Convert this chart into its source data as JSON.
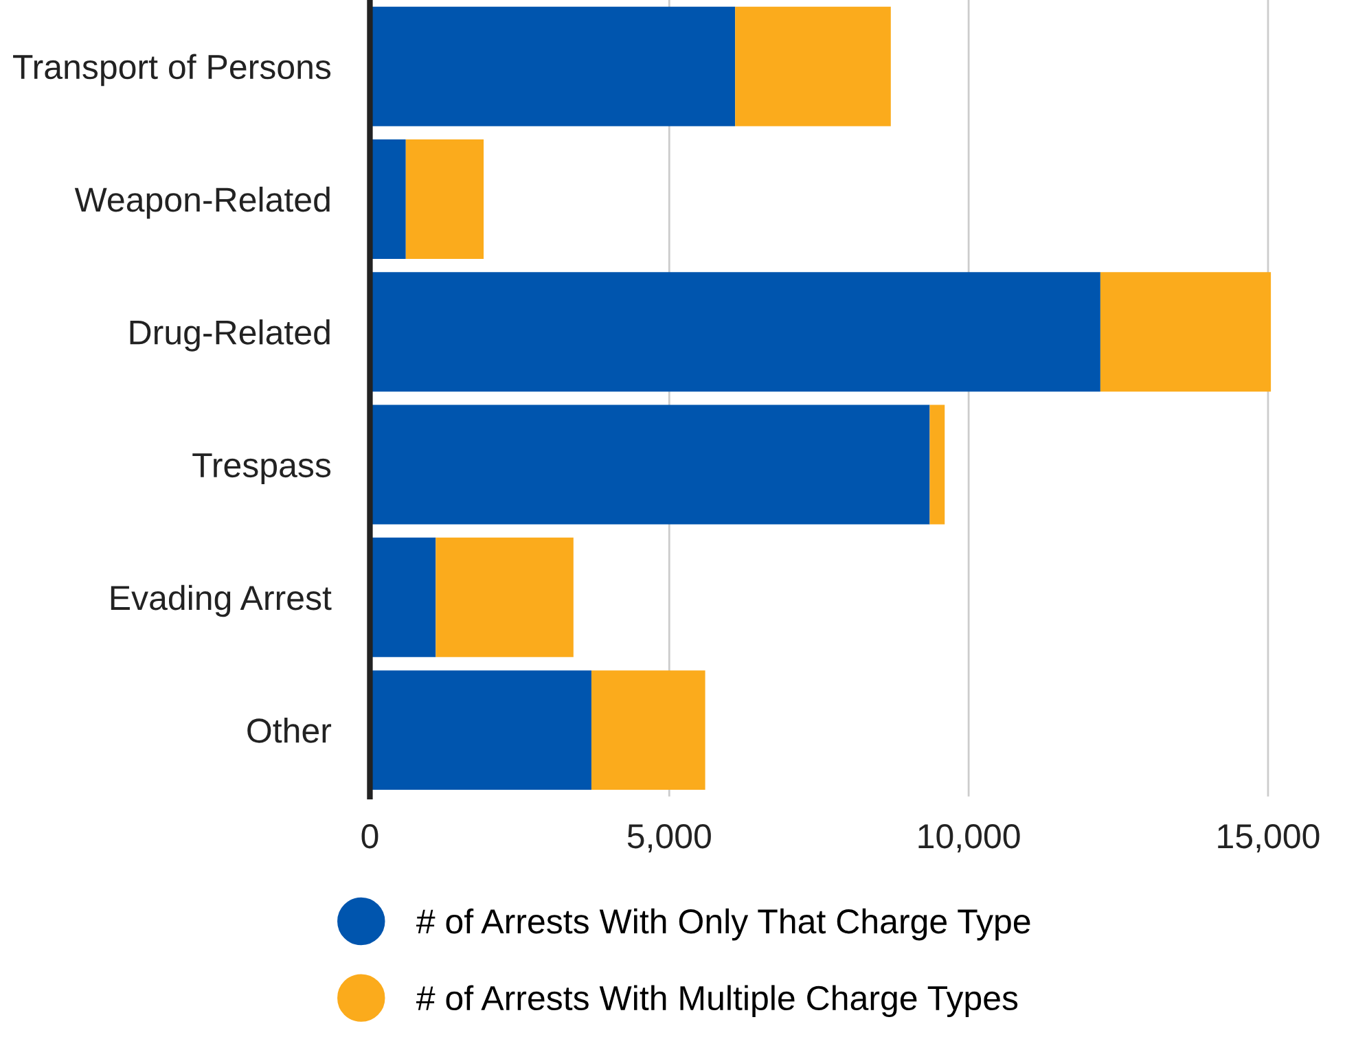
{
  "chart_data": {
    "type": "bar",
    "orientation": "horizontal",
    "stacked": true,
    "categories": [
      "Transport of Persons",
      "Weapon-Related",
      "Drug-Related",
      "Trespass",
      "Evading Arrest",
      "Other"
    ],
    "series": [
      {
        "name": "# of Arrests With Only That Charge Type",
        "color": "#0055ae",
        "values": [
          6100,
          600,
          12200,
          9350,
          1100,
          3700
        ]
      },
      {
        "name": "# of Arrests With Multiple Charge Types",
        "color": "#fbab1c",
        "values": [
          2600,
          1300,
          2850,
          250,
          2300,
          1900
        ]
      }
    ],
    "xlim": [
      0,
      15050
    ],
    "xticks": [
      0,
      {
        "value": 5000,
        "label": "5,000"
      },
      {
        "value": 10000,
        "label": "10,000"
      },
      {
        "value": 15000,
        "label": "15,000"
      }
    ],
    "grid": "x",
    "legend": "bottom",
    "marker": "circle"
  }
}
